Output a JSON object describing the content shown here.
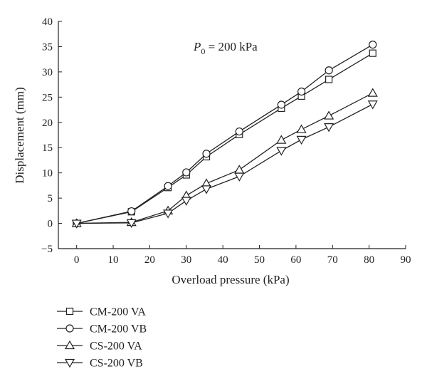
{
  "chart_data": {
    "type": "line",
    "title": "",
    "annotation": {
      "symbol": "P",
      "subscript": "0",
      "text": " = 200 kPa"
    },
    "xlabel": "Overload pressure (kPa)",
    "ylabel": "Displacement (mm)",
    "xlim": [
      -5,
      90
    ],
    "ylim": [
      -5,
      40
    ],
    "xticks": [
      0,
      10,
      20,
      30,
      40,
      50,
      60,
      70,
      80,
      90
    ],
    "yticks": [
      -5,
      0,
      5,
      10,
      15,
      20,
      25,
      30,
      35,
      40
    ],
    "grid": false,
    "legend_position": "bottom-left, below plot",
    "series": [
      {
        "name": "CM-200 VA",
        "marker": "square",
        "x": [
          0,
          15,
          25,
          30,
          35.5,
          44.5,
          56,
          61.5,
          69,
          81
        ],
        "y": [
          0,
          2.3,
          7.1,
          9.6,
          13.2,
          17.6,
          22.8,
          25.2,
          28.5,
          33.7
        ]
      },
      {
        "name": "CM-200 VB",
        "marker": "circle",
        "x": [
          0,
          15,
          25,
          30,
          35.5,
          44.5,
          56,
          61.5,
          69,
          81
        ],
        "y": [
          0,
          2.4,
          7.4,
          10.1,
          13.8,
          18.2,
          23.5,
          26.1,
          30.3,
          35.4
        ]
      },
      {
        "name": "CS-200 VA",
        "marker": "triangle-up",
        "x": [
          0,
          15,
          25,
          30,
          35.5,
          44.5,
          56,
          61.5,
          69,
          81
        ],
        "y": [
          0,
          0.2,
          2.5,
          5.5,
          7.9,
          10.6,
          16.5,
          18.6,
          21.3,
          25.8
        ]
      },
      {
        "name": "CS-200 VB",
        "marker": "triangle-down",
        "x": [
          0,
          15,
          25,
          30,
          35.5,
          44.5,
          56,
          61.5,
          69,
          81
        ],
        "y": [
          0,
          0.1,
          2.0,
          4.5,
          6.8,
          9.3,
          14.4,
          16.6,
          19.1,
          23.6
        ]
      }
    ]
  }
}
